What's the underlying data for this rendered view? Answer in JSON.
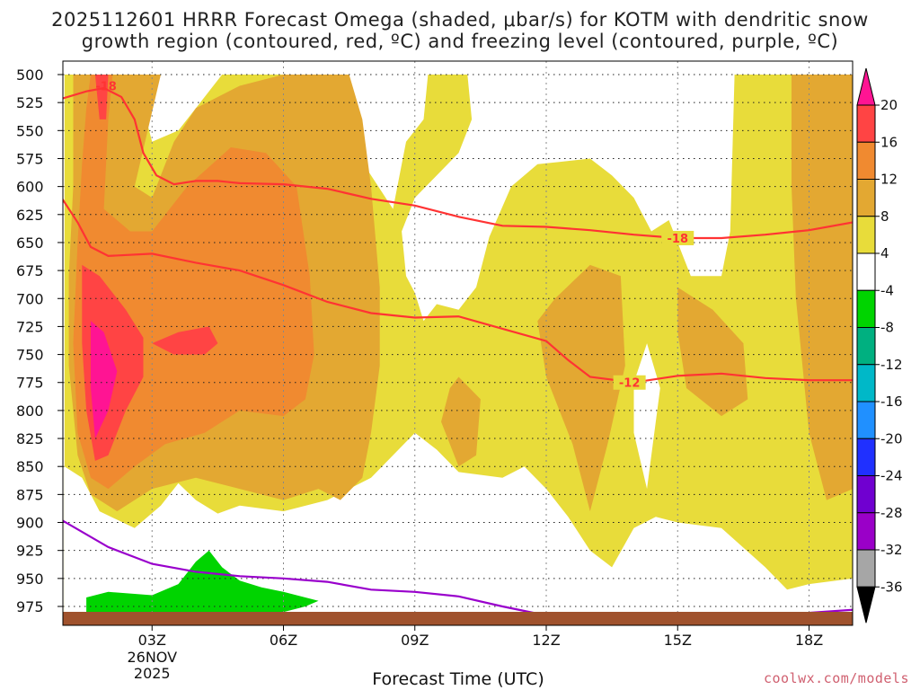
{
  "chart_data": {
    "type": "heatmap",
    "title_line1": "2025112601 HRRR Forecast Omega (shaded, μbar/s) for KOTM with dendritic snow",
    "title_line2": "growth region (contoured, red, ºC) and freezing level (contoured, purple, ºC)",
    "xlabel": "Forecast Time (UTC)",
    "x_ticks": [
      "03Z",
      "06Z",
      "09Z",
      "12Z",
      "15Z",
      "18Z"
    ],
    "x_date_label": [
      "26NOV",
      "2025"
    ],
    "x_range_hours": [
      1,
      19
    ],
    "y_ticks": [
      500,
      525,
      550,
      575,
      600,
      625,
      650,
      675,
      700,
      725,
      750,
      775,
      800,
      825,
      850,
      875,
      900,
      925,
      950,
      975
    ],
    "y_range": [
      500,
      985
    ],
    "y_inverted": true,
    "grid": true,
    "colorbar": {
      "labels": [
        20,
        16,
        12,
        8,
        4,
        -4,
        -8,
        -12,
        -16,
        -20,
        -24,
        -28,
        -32,
        -36
      ],
      "colors": [
        "#ff1493",
        "#ff4444",
        "#f08a30",
        "#e3a832",
        "#e8dc3a",
        "#ffffff",
        "#00d400",
        "#00b080",
        "#00b8c8",
        "#2090ff",
        "#2030ff",
        "#7000d0",
        "#9a00c8",
        "#a6a6a6",
        "#000000"
      ]
    },
    "contours": [
      {
        "color": "red",
        "label": "-18",
        "points": [
          [
            0.9,
            522
          ],
          [
            1.5,
            515
          ],
          [
            1.9,
            512
          ],
          [
            2.3,
            520
          ],
          [
            2.6,
            540
          ],
          [
            2.8,
            570
          ],
          [
            3.1,
            590
          ],
          [
            3.5,
            598
          ],
          [
            4.0,
            595
          ],
          [
            4.5,
            595
          ],
          [
            5.0,
            597
          ],
          [
            6.0,
            598
          ],
          [
            7.0,
            602
          ],
          [
            8.0,
            611
          ],
          [
            9.0,
            617
          ],
          [
            10.0,
            627
          ],
          [
            11.0,
            635
          ],
          [
            12.0,
            636
          ],
          [
            13.0,
            639
          ],
          [
            14.0,
            643
          ],
          [
            15.0,
            646
          ],
          [
            16.0,
            646
          ],
          [
            17.0,
            643
          ],
          [
            18.0,
            639
          ],
          [
            19.0,
            632
          ]
        ]
      },
      {
        "color": "red",
        "label": "-12",
        "points": [
          [
            0.9,
            608
          ],
          [
            1.3,
            632
          ],
          [
            1.6,
            654
          ],
          [
            2.0,
            662
          ],
          [
            3.0,
            660
          ],
          [
            4.0,
            668
          ],
          [
            5.0,
            675
          ],
          [
            6.0,
            688
          ],
          [
            7.0,
            703
          ],
          [
            8.0,
            713
          ],
          [
            9.0,
            717
          ],
          [
            10.0,
            716
          ],
          [
            11.0,
            727
          ],
          [
            12.0,
            738
          ],
          [
            12.5,
            755
          ],
          [
            13.0,
            770
          ],
          [
            14.0,
            775
          ],
          [
            15.0,
            769
          ],
          [
            16.0,
            767
          ],
          [
            17.0,
            771
          ],
          [
            18.0,
            773
          ],
          [
            19.0,
            773
          ]
        ]
      },
      {
        "color": "purple",
        "label": "",
        "points": [
          [
            0.9,
            897
          ],
          [
            2.0,
            922
          ],
          [
            3.0,
            937
          ],
          [
            4.0,
            944
          ],
          [
            5.0,
            948
          ],
          [
            6.0,
            950
          ],
          [
            7.0,
            953
          ],
          [
            8.0,
            960
          ],
          [
            9.0,
            962
          ],
          [
            10.0,
            966
          ],
          [
            11.0,
            975
          ],
          [
            12.0,
            983
          ]
        ]
      },
      {
        "color": "purple",
        "label": "",
        "points": [
          [
            16.6,
            983
          ],
          [
            17.5,
            982
          ],
          [
            19.0,
            978
          ]
        ]
      }
    ],
    "omega_regions": [
      {
        "level": 4,
        "points": [
          [
            1,
            500
          ],
          [
            19,
            500
          ],
          [
            19,
            985
          ],
          [
            1,
            985
          ]
        ]
      },
      {
        "level": -4,
        "points": [
          [
            3.0,
            500
          ],
          [
            4.6,
            500
          ],
          [
            4.2,
            520
          ],
          [
            3.6,
            550
          ],
          [
            3.0,
            560
          ],
          [
            2.8,
            530
          ]
        ]
      },
      {
        "level": -4,
        "points": [
          [
            6.8,
            500
          ],
          [
            9.3,
            500
          ],
          [
            9.2,
            540
          ],
          [
            8.8,
            560
          ],
          [
            8.5,
            620
          ],
          [
            8.0,
            590
          ],
          [
            7.5,
            560
          ],
          [
            7.3,
            530
          ]
        ]
      },
      {
        "level": -4,
        "points": [
          [
            10.2,
            500
          ],
          [
            16.3,
            500
          ],
          [
            16.2,
            640
          ],
          [
            16.0,
            680
          ],
          [
            15.3,
            680
          ],
          [
            14.8,
            630
          ],
          [
            14.4,
            640
          ],
          [
            14.0,
            610
          ],
          [
            13.5,
            590
          ],
          [
            13.0,
            575
          ],
          [
            12.3,
            578
          ],
          [
            11.8,
            580
          ],
          [
            11.2,
            600
          ],
          [
            10.7,
            645
          ],
          [
            10.4,
            690
          ],
          [
            10.0,
            710
          ],
          [
            9.5,
            705
          ],
          [
            9.2,
            720
          ],
          [
            9.0,
            695
          ],
          [
            8.8,
            680
          ],
          [
            8.7,
            640
          ],
          [
            9.0,
            610
          ],
          [
            9.5,
            590
          ],
          [
            10.0,
            570
          ],
          [
            10.3,
            540
          ]
        ]
      },
      {
        "level": -4,
        "points": [
          [
            18.8,
            500
          ],
          [
            19,
            500
          ],
          [
            19,
            510
          ]
        ]
      },
      {
        "level": -4,
        "points": [
          [
            1,
            850
          ],
          [
            1.4,
            860
          ],
          [
            1.8,
            890
          ],
          [
            2.6,
            905
          ],
          [
            3.2,
            885
          ],
          [
            3.6,
            865
          ],
          [
            4.0,
            880
          ],
          [
            4.5,
            892
          ],
          [
            5.0,
            885
          ],
          [
            6.0,
            890
          ],
          [
            7.0,
            880
          ],
          [
            8.0,
            860
          ],
          [
            9.0,
            820
          ],
          [
            9.5,
            835
          ],
          [
            10.0,
            855
          ],
          [
            11.0,
            860
          ],
          [
            11.5,
            850
          ],
          [
            12.0,
            870
          ],
          [
            12.5,
            895
          ],
          [
            13.0,
            925
          ],
          [
            13.5,
            940
          ],
          [
            14.0,
            905
          ],
          [
            14.5,
            895
          ],
          [
            15.0,
            900
          ],
          [
            16.0,
            905
          ],
          [
            17.0,
            940
          ],
          [
            17.5,
            960
          ],
          [
            18.0,
            955
          ],
          [
            19.0,
            950
          ],
          [
            19,
            985
          ],
          [
            1,
            985
          ]
        ]
      },
      {
        "level": -4,
        "points": [
          [
            14.0,
            775
          ],
          [
            14.3,
            740
          ],
          [
            14.6,
            780
          ],
          [
            14.3,
            870
          ],
          [
            14.0,
            820
          ]
        ]
      },
      {
        "level": 8,
        "points": [
          [
            1.2,
            500
          ],
          [
            3.2,
            500
          ],
          [
            2.9,
            550
          ],
          [
            2.6,
            600
          ],
          [
            3.0,
            610
          ],
          [
            3.5,
            560
          ],
          [
            4.0,
            530
          ],
          [
            5.0,
            510
          ],
          [
            6.0,
            500
          ],
          [
            7.5,
            500
          ],
          [
            7.8,
            540
          ],
          [
            8.0,
            600
          ],
          [
            8.2,
            690
          ],
          [
            8.2,
            760
          ],
          [
            8.0,
            820
          ],
          [
            7.8,
            860
          ],
          [
            7.3,
            880
          ],
          [
            6.8,
            870
          ],
          [
            6.0,
            880
          ],
          [
            5.0,
            870
          ],
          [
            4.0,
            860
          ],
          [
            3.0,
            870
          ],
          [
            2.2,
            890
          ],
          [
            1.6,
            875
          ],
          [
            1.3,
            840
          ],
          [
            1.1,
            760
          ],
          [
            1.1,
            680
          ],
          [
            1.2,
            600
          ],
          [
            1.2,
            540
          ]
        ]
      },
      {
        "level": 8,
        "points": [
          [
            12.2,
            700
          ],
          [
            13.0,
            670
          ],
          [
            13.7,
            680
          ],
          [
            13.8,
            760
          ],
          [
            13.4,
            830
          ],
          [
            13.0,
            890
          ],
          [
            12.6,
            830
          ],
          [
            12.0,
            770
          ],
          [
            11.8,
            720
          ]
        ]
      },
      {
        "level": 8,
        "points": [
          [
            10.0,
            770
          ],
          [
            10.5,
            790
          ],
          [
            10.4,
            840
          ],
          [
            10.0,
            850
          ],
          [
            9.6,
            810
          ],
          [
            9.8,
            780
          ]
        ]
      },
      {
        "level": 8,
        "points": [
          [
            15.0,
            690
          ],
          [
            15.8,
            710
          ],
          [
            16.5,
            740
          ],
          [
            16.6,
            790
          ],
          [
            16.0,
            805
          ],
          [
            15.2,
            780
          ],
          [
            15.0,
            730
          ]
        ]
      },
      {
        "level": 8,
        "points": [
          [
            17.6,
            500
          ],
          [
            19,
            500
          ],
          [
            19,
            870
          ],
          [
            18.4,
            880
          ],
          [
            18.0,
            820
          ],
          [
            17.7,
            700
          ],
          [
            17.6,
            600
          ]
        ]
      },
      {
        "level": 12,
        "points": [
          [
            1.6,
            500
          ],
          [
            2.1,
            500
          ],
          [
            2.0,
            540
          ],
          [
            1.9,
            620
          ],
          [
            2.5,
            640
          ],
          [
            3.0,
            640
          ],
          [
            3.8,
            600
          ],
          [
            4.8,
            565
          ],
          [
            5.6,
            570
          ],
          [
            6.3,
            600
          ],
          [
            6.6,
            680
          ],
          [
            6.7,
            750
          ],
          [
            6.5,
            790
          ],
          [
            6.0,
            805
          ],
          [
            5.0,
            800
          ],
          [
            4.2,
            820
          ],
          [
            3.3,
            830
          ],
          [
            2.6,
            850
          ],
          [
            2.0,
            870
          ],
          [
            1.6,
            860
          ],
          [
            1.3,
            820
          ],
          [
            1.2,
            740
          ],
          [
            1.3,
            650
          ],
          [
            1.4,
            580
          ],
          [
            1.5,
            530
          ]
        ]
      },
      {
        "level": 16,
        "points": [
          [
            1.4,
            670
          ],
          [
            1.8,
            680
          ],
          [
            2.4,
            710
          ],
          [
            2.8,
            735
          ],
          [
            2.8,
            770
          ],
          [
            2.4,
            800
          ],
          [
            2.0,
            840
          ],
          [
            1.7,
            845
          ],
          [
            1.5,
            800
          ],
          [
            1.4,
            740
          ]
        ]
      },
      {
        "level": 16,
        "points": [
          [
            3.0,
            740
          ],
          [
            3.6,
            730
          ],
          [
            4.3,
            725
          ],
          [
            4.5,
            740
          ],
          [
            4.2,
            750
          ],
          [
            3.5,
            750
          ]
        ]
      },
      {
        "level": 16,
        "points": [
          [
            1.7,
            500
          ],
          [
            2.0,
            500
          ],
          [
            1.95,
            540
          ],
          [
            1.8,
            540
          ]
        ]
      },
      {
        "level": 20,
        "points": [
          [
            1.6,
            720
          ],
          [
            1.9,
            730
          ],
          [
            2.2,
            765
          ],
          [
            2.0,
            800
          ],
          [
            1.7,
            825
          ],
          [
            1.6,
            780
          ]
        ]
      },
      {
        "level": -8,
        "points": [
          [
            1.5,
            967
          ],
          [
            2.0,
            962
          ],
          [
            3.0,
            965
          ],
          [
            3.6,
            955
          ],
          [
            3.8,
            945
          ],
          [
            4.0,
            935
          ],
          [
            4.3,
            925
          ],
          [
            4.6,
            940
          ],
          [
            5.0,
            952
          ],
          [
            5.5,
            958
          ],
          [
            6.0,
            962
          ],
          [
            6.8,
            970
          ],
          [
            6.5,
            975
          ],
          [
            6.0,
            980
          ],
          [
            5.0,
            982
          ],
          [
            4.0,
            980
          ],
          [
            3.0,
            982
          ],
          [
            2.0,
            983
          ],
          [
            1.5,
            980
          ]
        ]
      }
    ]
  },
  "credit": "coolwx.com/models"
}
